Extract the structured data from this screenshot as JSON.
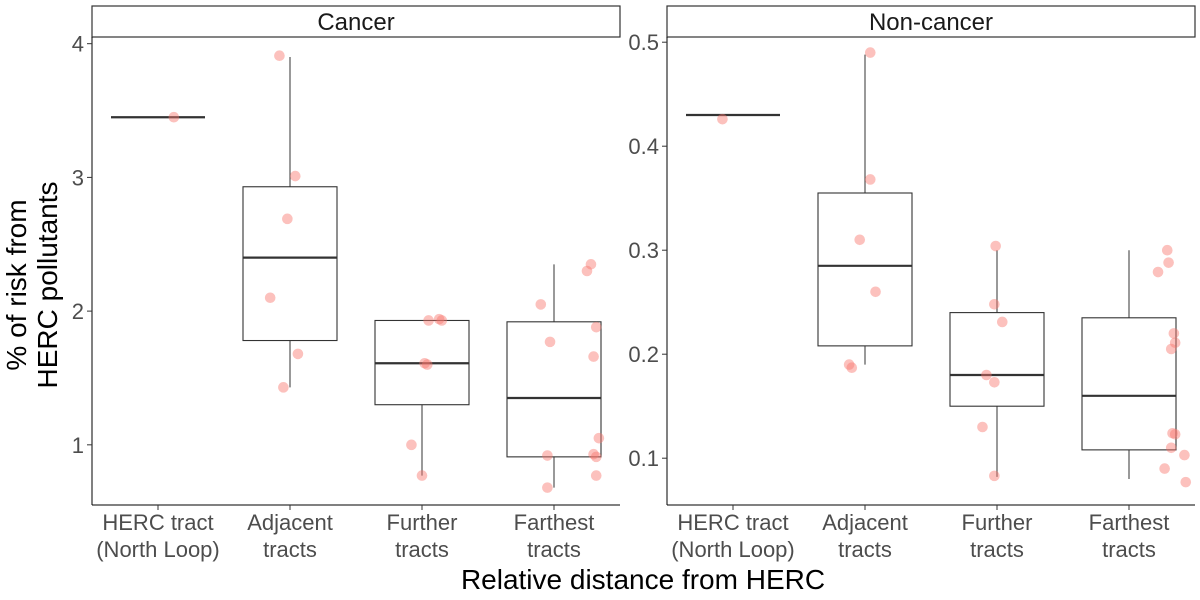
{
  "chart_data": {
    "type": "boxplot",
    "xlabel": "Relative distance from HERC",
    "ylabel_lines": [
      "% of risk from",
      "HERC pollutants"
    ],
    "categories": [
      [
        "HERC tract",
        "(North Loop)"
      ],
      [
        "Adjacent",
        "tracts"
      ],
      [
        "Further",
        "tracts"
      ],
      [
        "Farthest",
        "tracts"
      ]
    ],
    "point_color": "#f8766d",
    "panels": [
      {
        "title": "Cancer",
        "ylim": [
          0.55,
          4.05
        ],
        "yticks": [
          1,
          2,
          3,
          4
        ],
        "ytick_labels": [
          "1",
          "2",
          "3",
          "4"
        ],
        "boxes": [
          {
            "min": 3.45,
            "q1": 3.45,
            "median": 3.45,
            "q3": 3.45,
            "max": 3.45
          },
          {
            "min": 1.43,
            "q1": 1.78,
            "median": 2.4,
            "q3": 2.93,
            "max": 3.9
          },
          {
            "min": 0.77,
            "q1": 1.3,
            "median": 1.61,
            "q3": 1.93,
            "max": 1.93
          },
          {
            "min": 0.68,
            "q1": 0.91,
            "median": 1.35,
            "q3": 1.92,
            "max": 2.35
          }
        ],
        "points": [
          [
            {
              "jitter": 0.12,
              "y": 3.45
            }
          ],
          [
            {
              "jitter": -0.08,
              "y": 3.91
            },
            {
              "jitter": 0.04,
              "y": 3.01
            },
            {
              "jitter": -0.02,
              "y": 2.69
            },
            {
              "jitter": -0.15,
              "y": 2.1
            },
            {
              "jitter": 0.06,
              "y": 1.68
            },
            {
              "jitter": -0.05,
              "y": 1.43
            }
          ],
          [
            {
              "jitter": 0.13,
              "y": 1.94
            },
            {
              "jitter": 0.05,
              "y": 1.93
            },
            {
              "jitter": 0.15,
              "y": 1.93
            },
            {
              "jitter": 0.02,
              "y": 1.61
            },
            {
              "jitter": 0.04,
              "y": 1.6
            },
            {
              "jitter": -0.08,
              "y": 1.0
            },
            {
              "jitter": 0.0,
              "y": 0.77
            }
          ],
          [
            {
              "jitter": 0.28,
              "y": 2.35
            },
            {
              "jitter": 0.25,
              "y": 2.3
            },
            {
              "jitter": -0.1,
              "y": 2.05
            },
            {
              "jitter": 0.32,
              "y": 1.88
            },
            {
              "jitter": -0.03,
              "y": 1.77
            },
            {
              "jitter": 0.3,
              "y": 1.66
            },
            {
              "jitter": 0.34,
              "y": 1.05
            },
            {
              "jitter": 0.3,
              "y": 0.93
            },
            {
              "jitter": -0.05,
              "y": 0.92
            },
            {
              "jitter": 0.32,
              "y": 0.91
            },
            {
              "jitter": 0.32,
              "y": 0.77
            },
            {
              "jitter": -0.05,
              "y": 0.68
            }
          ]
        ]
      },
      {
        "title": "Non-cancer",
        "ylim": [
          0.055,
          0.505
        ],
        "yticks": [
          0.1,
          0.2,
          0.3,
          0.4,
          0.5
        ],
        "ytick_labels": [
          "0.1",
          "0.2",
          "0.3",
          "0.4",
          "0.5"
        ],
        "boxes": [
          {
            "min": 0.43,
            "q1": 0.43,
            "median": 0.43,
            "q3": 0.43,
            "max": 0.43
          },
          {
            "min": 0.19,
            "q1": 0.208,
            "median": 0.285,
            "q3": 0.355,
            "max": 0.488
          },
          {
            "min": 0.082,
            "q1": 0.15,
            "median": 0.18,
            "q3": 0.24,
            "max": 0.3
          },
          {
            "min": 0.08,
            "q1": 0.108,
            "median": 0.16,
            "q3": 0.235,
            "max": 0.3
          }
        ],
        "points": [
          [
            {
              "jitter": -0.08,
              "y": 0.426
            }
          ],
          [
            {
              "jitter": 0.04,
              "y": 0.49
            },
            {
              "jitter": 0.04,
              "y": 0.368
            },
            {
              "jitter": -0.04,
              "y": 0.31
            },
            {
              "jitter": 0.08,
              "y": 0.26
            },
            {
              "jitter": -0.12,
              "y": 0.19
            },
            {
              "jitter": -0.1,
              "y": 0.187
            }
          ],
          [
            {
              "jitter": -0.01,
              "y": 0.304
            },
            {
              "jitter": -0.02,
              "y": 0.248
            },
            {
              "jitter": 0.04,
              "y": 0.231
            },
            {
              "jitter": -0.08,
              "y": 0.18
            },
            {
              "jitter": -0.02,
              "y": 0.173
            },
            {
              "jitter": -0.11,
              "y": 0.13
            },
            {
              "jitter": -0.02,
              "y": 0.083
            }
          ],
          [
            {
              "jitter": 0.29,
              "y": 0.3
            },
            {
              "jitter": 0.3,
              "y": 0.288
            },
            {
              "jitter": 0.22,
              "y": 0.279
            },
            {
              "jitter": 0.34,
              "y": 0.22
            },
            {
              "jitter": 0.35,
              "y": 0.211
            },
            {
              "jitter": 0.32,
              "y": 0.205
            },
            {
              "jitter": 0.33,
              "y": 0.124
            },
            {
              "jitter": 0.35,
              "y": 0.123
            },
            {
              "jitter": 0.32,
              "y": 0.11
            },
            {
              "jitter": 0.42,
              "y": 0.103
            },
            {
              "jitter": 0.27,
              "y": 0.09
            },
            {
              "jitter": 0.43,
              "y": 0.077
            }
          ]
        ]
      }
    ]
  }
}
